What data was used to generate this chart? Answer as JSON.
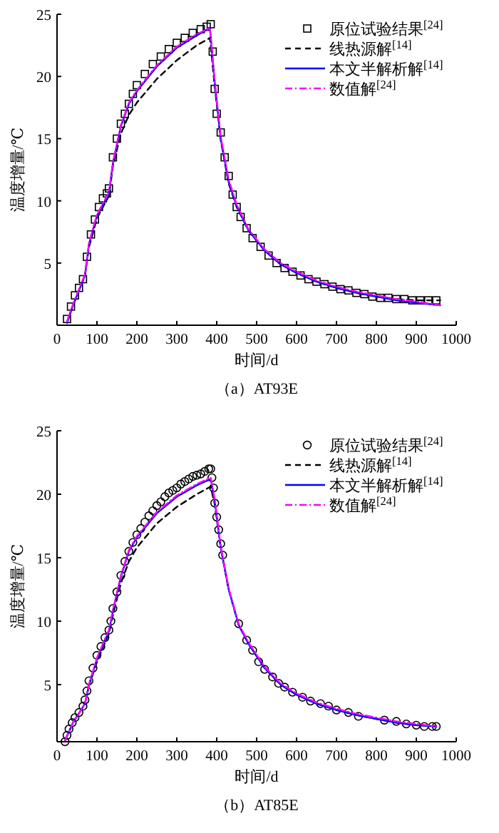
{
  "chart_data": [
    {
      "type": "line",
      "title": "（a）AT93E",
      "xlabel": "时间/d",
      "ylabel": "温度增量/℃",
      "xlim": [
        0,
        1000
      ],
      "ylim": [
        0,
        25
      ],
      "xticks": [
        0,
        100,
        200,
        300,
        400,
        500,
        600,
        700,
        800,
        900,
        1000
      ],
      "yticks": [
        5,
        10,
        15,
        20,
        25
      ],
      "grid": false,
      "legend": "top right",
      "series": [
        {
          "name": "原位试验结果$^{[24]}$",
          "type": "scatter",
          "marker": "square",
          "color": "#000000",
          "x": [
            25,
            35,
            45,
            55,
            65,
            75,
            85,
            95,
            105,
            115,
            125,
            130,
            140,
            150,
            160,
            170,
            180,
            190,
            200,
            220,
            240,
            260,
            280,
            300,
            320,
            340,
            360,
            375,
            385,
            390,
            395,
            400,
            410,
            420,
            430,
            440,
            450,
            460,
            475,
            490,
            510,
            530,
            550,
            570,
            590,
            610,
            630,
            650,
            670,
            690,
            710,
            730,
            750,
            770,
            790,
            810,
            830,
            850,
            870,
            890,
            910,
            930,
            950
          ],
          "values": [
            0.5,
            1.5,
            2.4,
            3.0,
            3.7,
            5.5,
            7.3,
            8.5,
            9.5,
            10.2,
            10.6,
            11.0,
            13.5,
            15.0,
            16.2,
            17.0,
            17.8,
            18.6,
            19.3,
            20.2,
            21.0,
            21.6,
            22.2,
            22.7,
            23.1,
            23.5,
            23.8,
            24.0,
            24.2,
            22.0,
            19.0,
            17.0,
            15.5,
            13.5,
            12.0,
            10.5,
            9.5,
            8.7,
            7.8,
            7.0,
            6.3,
            5.6,
            5.0,
            4.6,
            4.3,
            4.0,
            3.7,
            3.5,
            3.3,
            3.1,
            2.9,
            2.8,
            2.6,
            2.5,
            2.3,
            2.2,
            2.2,
            2.1,
            2.1,
            2.0,
            2.0,
            2.0,
            2.0
          ]
        },
        {
          "name": "线热源解$^{[14]}$",
          "line_style": "dashed",
          "color": "#000000",
          "x": [
            25,
            40,
            60,
            70,
            80,
            100,
            120,
            130,
            140,
            160,
            180,
            200,
            250,
            300,
            350,
            383,
            395,
            410,
            430,
            450,
            480,
            520,
            560,
            600,
            650,
            700,
            750,
            800,
            850,
            900,
            960
          ],
          "values": [
            0.2,
            1.6,
            3.2,
            4.0,
            6.3,
            8.6,
            9.8,
            10.4,
            12.8,
            15.4,
            16.9,
            17.9,
            19.8,
            21.3,
            22.5,
            23.1,
            19.2,
            14.9,
            11.4,
            9.5,
            7.6,
            6.0,
            4.9,
            4.2,
            3.5,
            3.0,
            2.6,
            2.3,
            2.1,
            2.0,
            2.0
          ]
        },
        {
          "name": "本文半解析解$^{[14]}$",
          "line_style": "solid",
          "color": "#0000ff",
          "x": [
            25,
            40,
            60,
            70,
            80,
            100,
            120,
            130,
            140,
            160,
            180,
            200,
            250,
            300,
            350,
            383,
            395,
            410,
            430,
            450,
            480,
            520,
            560,
            600,
            650,
            700,
            750,
            800,
            850,
            900,
            960
          ],
          "values": [
            0.2,
            1.6,
            3.2,
            4.0,
            6.5,
            8.8,
            10.0,
            10.6,
            13.0,
            16.0,
            17.8,
            18.8,
            20.8,
            22.3,
            23.3,
            23.9,
            19.5,
            15.0,
            11.5,
            9.6,
            7.6,
            6.0,
            4.9,
            4.2,
            3.5,
            3.0,
            2.6,
            2.3,
            2.0,
            1.8,
            1.6
          ]
        },
        {
          "name": "数值解$^{[24]}$",
          "line_style": "dashdot",
          "color": "#ff00ff",
          "x": [
            25,
            40,
            60,
            70,
            80,
            100,
            120,
            130,
            140,
            160,
            180,
            200,
            250,
            300,
            350,
            383,
            395,
            410,
            430,
            450,
            480,
            520,
            560,
            600,
            650,
            700,
            750,
            800,
            850,
            900,
            960
          ],
          "values": [
            0.3,
            1.7,
            3.3,
            4.1,
            6.6,
            8.9,
            10.1,
            10.7,
            13.1,
            16.1,
            17.9,
            18.9,
            20.9,
            22.4,
            23.4,
            23.9,
            19.6,
            15.2,
            11.7,
            9.7,
            7.7,
            6.1,
            5.0,
            4.3,
            3.6,
            3.1,
            2.7,
            2.4,
            2.1,
            1.9,
            1.6
          ]
        }
      ]
    },
    {
      "type": "line",
      "title": "（b）AT85E",
      "xlabel": "时间/d",
      "ylabel": "温度增量/℃",
      "xlim": [
        0,
        1000
      ],
      "ylim": [
        0.5,
        25
      ],
      "xticks": [
        0,
        100,
        200,
        300,
        400,
        500,
        600,
        700,
        800,
        900,
        1000
      ],
      "yticks": [
        5,
        10,
        15,
        20,
        25
      ],
      "grid": false,
      "legend": "top right",
      "series": [
        {
          "name": "原位试验结果$^{[24]}$",
          "type": "scatter",
          "marker": "circle",
          "color": "#000000",
          "x": [
            20,
            25,
            30,
            38,
            45,
            55,
            65,
            70,
            75,
            80,
            90,
            100,
            110,
            120,
            130,
            135,
            140,
            150,
            160,
            170,
            180,
            190,
            200,
            210,
            220,
            230,
            240,
            250,
            260,
            270,
            280,
            290,
            300,
            310,
            320,
            330,
            340,
            350,
            360,
            370,
            380,
            385,
            388,
            392,
            395,
            400,
            405,
            410,
            415,
            455,
            475,
            490,
            505,
            520,
            540,
            555,
            570,
            590,
            615,
            635,
            660,
            680,
            700,
            730,
            755,
            820,
            850,
            875,
            900,
            920,
            940,
            950
          ],
          "values": [
            0.5,
            1.0,
            1.5,
            2.0,
            2.4,
            2.8,
            3.3,
            3.8,
            4.5,
            5.3,
            6.3,
            7.3,
            8.0,
            8.7,
            9.3,
            10.0,
            11.0,
            12.3,
            13.6,
            14.7,
            15.5,
            16.2,
            16.8,
            17.3,
            17.8,
            18.3,
            18.7,
            19.1,
            19.4,
            19.8,
            20.1,
            20.3,
            20.5,
            20.8,
            21.0,
            21.2,
            21.4,
            21.5,
            21.6,
            21.8,
            22.0,
            22.0,
            21.3,
            20.5,
            19.3,
            18.2,
            17.2,
            16.1,
            15.2,
            9.8,
            8.5,
            7.7,
            6.8,
            6.2,
            5.6,
            5.1,
            4.8,
            4.4,
            4.0,
            3.7,
            3.5,
            3.3,
            3.0,
            2.8,
            2.5,
            2.2,
            2.1,
            1.9,
            1.8,
            1.7,
            1.7,
            1.7
          ]
        },
        {
          "name": "线热源解$^{[14]}$",
          "line_style": "dashed",
          "color": "#000000",
          "x": [
            20,
            40,
            60,
            70,
            80,
            100,
            120,
            130,
            140,
            160,
            180,
            200,
            250,
            300,
            350,
            385,
            395,
            410,
            430,
            455,
            480,
            520,
            560,
            600,
            650,
            700,
            750,
            800,
            850,
            900,
            950
          ],
          "values": [
            0.6,
            2.0,
            3.0,
            3.5,
            4.9,
            6.8,
            8.3,
            9.0,
            10.5,
            13.0,
            14.7,
            15.8,
            17.7,
            19.0,
            20.0,
            20.6,
            19.2,
            15.8,
            12.5,
            9.7,
            8.2,
            6.3,
            5.0,
            4.2,
            3.5,
            3.0,
            2.6,
            2.3,
            2.0,
            1.8,
            1.7
          ]
        },
        {
          "name": "本文半解析解$^{[14]}$",
          "line_style": "solid",
          "color": "#0000ff",
          "x": [
            20,
            40,
            60,
            70,
            80,
            100,
            120,
            130,
            140,
            160,
            180,
            200,
            250,
            300,
            350,
            385,
            395,
            410,
            430,
            455,
            480,
            520,
            560,
            600,
            650,
            700,
            750,
            800,
            850,
            900,
            950
          ],
          "values": [
            0.6,
            2.0,
            3.0,
            3.5,
            5.0,
            7.0,
            8.5,
            9.2,
            10.8,
            13.5,
            15.5,
            16.6,
            18.5,
            19.8,
            20.7,
            21.2,
            19.5,
            15.8,
            12.5,
            9.7,
            8.2,
            6.3,
            5.0,
            4.2,
            3.5,
            3.0,
            2.6,
            2.3,
            2.0,
            1.8,
            1.7
          ]
        },
        {
          "name": "数值解$^{[24]}$",
          "line_style": "dashdot",
          "color": "#ff00ff",
          "x": [
            20,
            40,
            60,
            70,
            80,
            100,
            120,
            130,
            140,
            160,
            180,
            200,
            250,
            300,
            350,
            385,
            395,
            410,
            430,
            455,
            480,
            520,
            560,
            600,
            650,
            700,
            750,
            800,
            850,
            900,
            950
          ],
          "values": [
            0.6,
            2.0,
            3.0,
            3.5,
            5.0,
            7.1,
            8.6,
            9.3,
            10.9,
            13.6,
            15.6,
            16.7,
            18.6,
            19.9,
            20.8,
            21.3,
            19.6,
            15.9,
            12.6,
            9.8,
            8.3,
            6.4,
            5.1,
            4.3,
            3.6,
            3.1,
            2.7,
            2.4,
            2.1,
            1.9,
            1.7
          ]
        }
      ]
    }
  ]
}
